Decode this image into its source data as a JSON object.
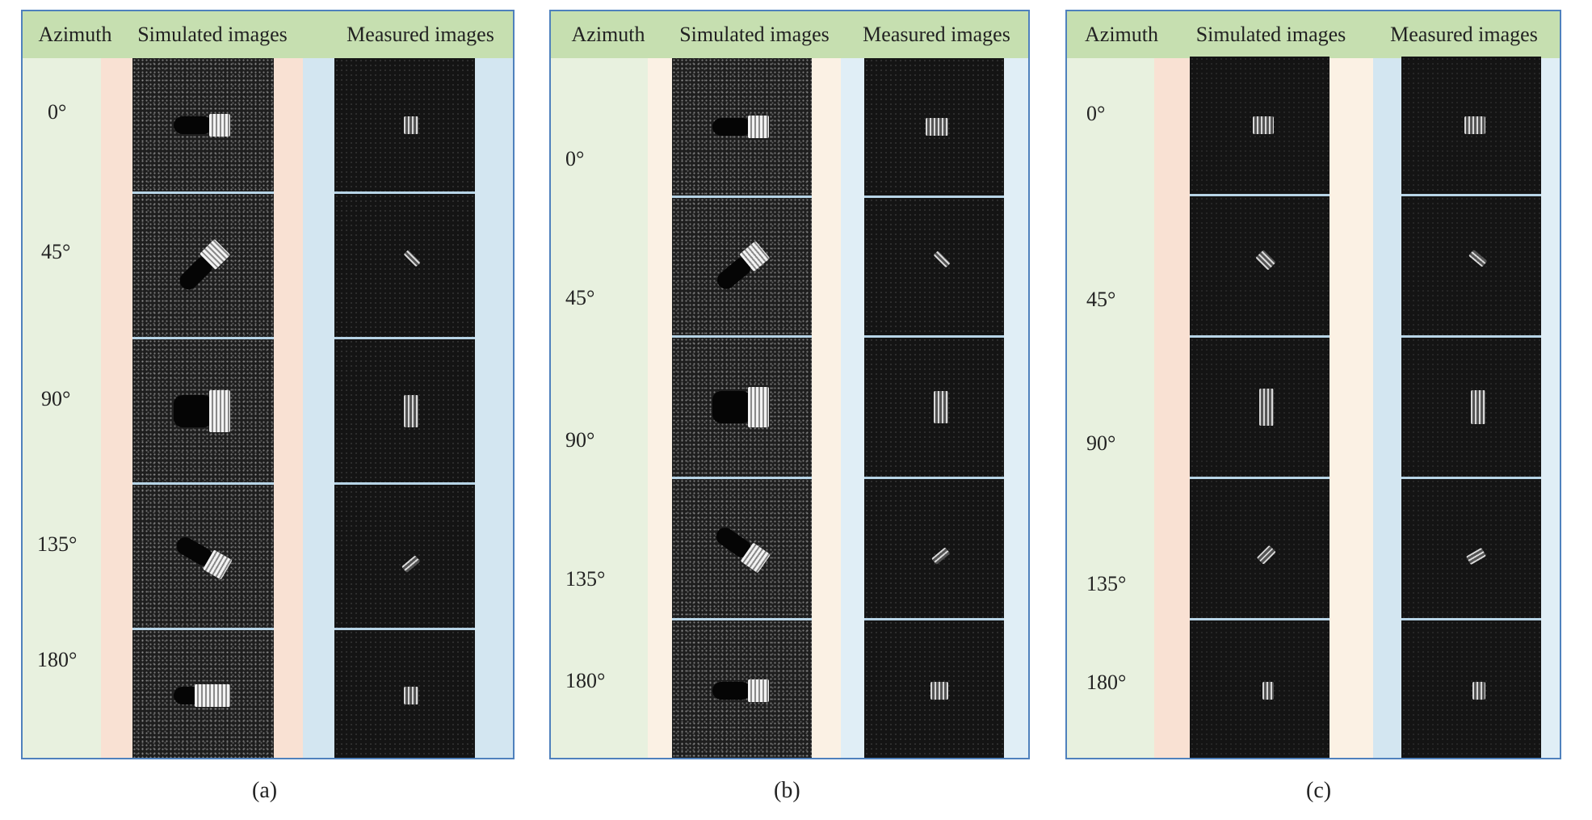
{
  "panels": {
    "a": {
      "caption": "(a)",
      "headers": {
        "azimuth": "Azimuth",
        "simulated": "Simulated images",
        "measured": "Measured images"
      },
      "azimuths": [
        "0°",
        "45°",
        "90°",
        "135°",
        "180°"
      ]
    },
    "b": {
      "caption": "(b)",
      "headers": {
        "azimuth": "Azimuth",
        "simulated": "Simulated images",
        "measured": "Measured images"
      },
      "azimuths": [
        "0°",
        "45°",
        "90°",
        "135°",
        "180°"
      ]
    },
    "c": {
      "caption": "(c)",
      "headers": {
        "azimuth": "Azimuth",
        "simulated": "Simulated images",
        "measured": "Measured images"
      },
      "azimuths": [
        "0°",
        "45°",
        "90°",
        "135°",
        "180°"
      ]
    }
  },
  "colors": {
    "panel_border": "#4f81bd",
    "header_background": "#c6dfb0",
    "azimuth_band": "#e8f1df",
    "simulated_band": "#f9e1d3",
    "measured_band": "#d3e6f1"
  }
}
